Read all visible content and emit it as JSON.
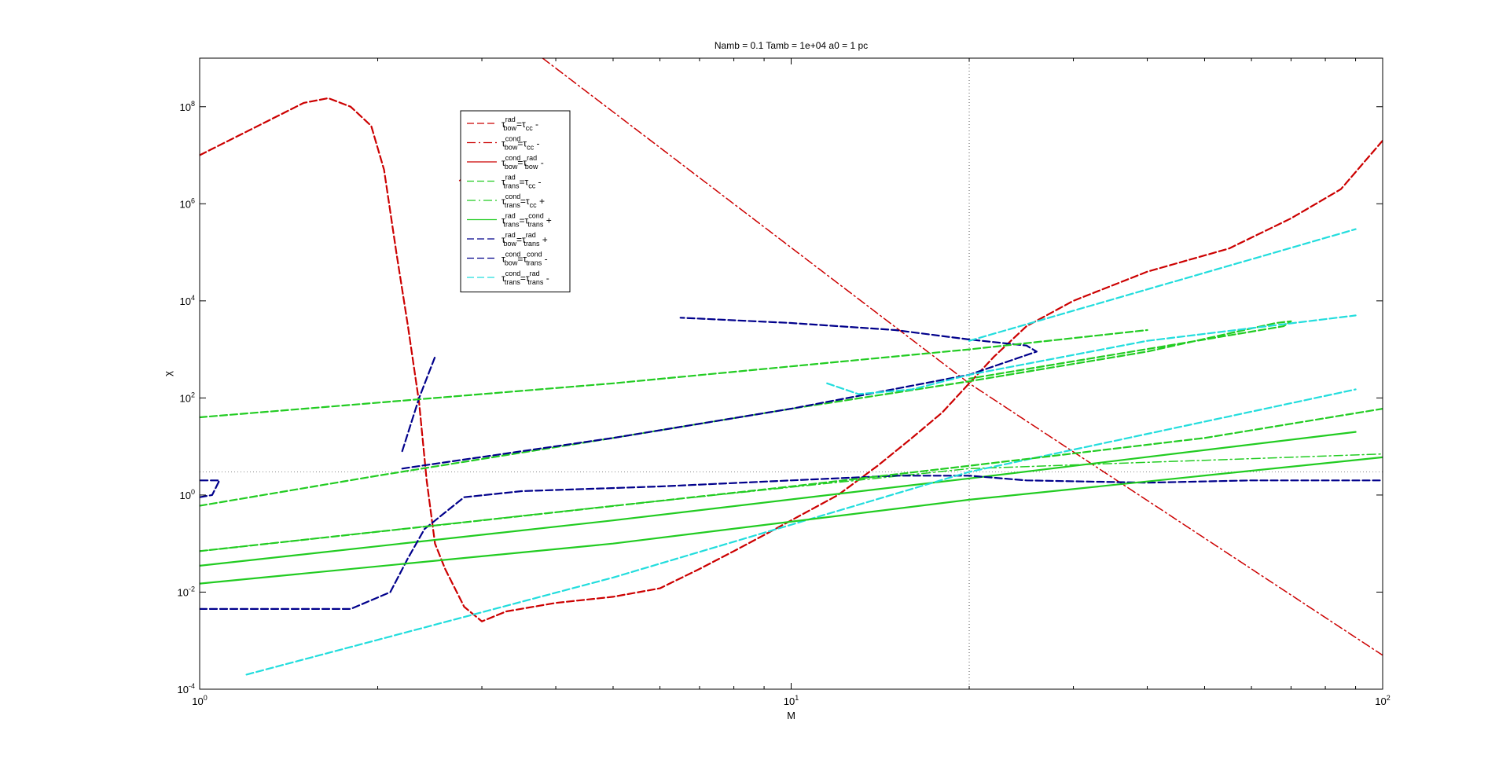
{
  "chart_data": {
    "type": "line",
    "title": "Namb = 0.1  Tamb = 1e+04  a0 = 1 pc",
    "xlabel": "M",
    "ylabel": "χ",
    "xscale": "log",
    "yscale": "log",
    "xlim": [
      1,
      100
    ],
    "ylim": [
      0.0001,
      1000000000
    ],
    "x_ticks": [
      {
        "value": 1,
        "base": "10",
        "exp": "0"
      },
      {
        "value": 10,
        "base": "10",
        "exp": "1"
      },
      {
        "value": 100,
        "base": "10",
        "exp": "2"
      }
    ],
    "y_ticks": [
      {
        "value": 0.0001,
        "base": "10",
        "exp": "-4"
      },
      {
        "value": 0.01,
        "base": "10",
        "exp": "-2"
      },
      {
        "value": 1,
        "base": "10",
        "exp": "0"
      },
      {
        "value": 100,
        "base": "10",
        "exp": "2"
      },
      {
        "value": 10000,
        "base": "10",
        "exp": "4"
      },
      {
        "value": 1000000,
        "base": "10",
        "exp": "6"
      },
      {
        "value": 100000000,
        "base": "10",
        "exp": "8"
      }
    ],
    "grid": false,
    "legend_position": "top-left",
    "reference_lines": [
      {
        "orientation": "vertical",
        "x": 20,
        "color": "#555555",
        "style": "dotted"
      },
      {
        "orientation": "horizontal",
        "y": 3,
        "color": "#888888",
        "style": "dotted"
      }
    ],
    "series": [
      {
        "legend": {
          "tau": "τ",
          "sup1": "rad",
          "sub1": "bow",
          "eq": "=τ",
          "sup2": "",
          "sub2": "cc",
          "sign": "-"
        },
        "color": "#cc0000",
        "style": "dashed",
        "width": 2.2,
        "points": [
          [
            1,
            10000000
          ],
          [
            1.5,
            120000000
          ],
          [
            1.65,
            150000000
          ],
          [
            1.8,
            100000000
          ],
          [
            1.95,
            40000000
          ],
          [
            2.05,
            5000000
          ],
          [
            2.15,
            100000
          ],
          [
            2.25,
            3000
          ],
          [
            2.35,
            80
          ],
          [
            2.42,
            2
          ],
          [
            2.5,
            0.1
          ],
          [
            2.6,
            0.03
          ],
          [
            2.8,
            0.005
          ],
          [
            3,
            0.0025
          ],
          [
            3.3,
            0.004
          ],
          [
            4,
            0.006
          ],
          [
            5,
            0.008
          ],
          [
            6,
            0.012
          ],
          [
            7,
            0.03
          ],
          [
            8,
            0.07
          ],
          [
            9,
            0.15
          ],
          [
            10,
            0.3
          ],
          [
            12,
            1
          ],
          [
            14,
            4
          ],
          [
            16,
            15
          ],
          [
            18,
            50
          ],
          [
            20,
            200
          ],
          [
            22,
            700
          ],
          [
            25,
            3000
          ],
          [
            30,
            10000
          ],
          [
            40,
            40000
          ],
          [
            55,
            120000
          ],
          [
            70,
            500000
          ],
          [
            85,
            2000000
          ],
          [
            100,
            20000000
          ]
        ]
      },
      {
        "legend": {
          "tau": "τ",
          "sup1": "cond",
          "sub1": "bow",
          "eq": "=τ",
          "sup2": "",
          "sub2": "cc",
          "sign": "-"
        },
        "color": "#cc0000",
        "style": "dashdot",
        "width": 1.5,
        "points": [
          [
            3.8,
            1000000000
          ],
          [
            20,
            200
          ],
          [
            100,
            0.0005
          ]
        ]
      },
      {
        "legend": {
          "tau": "τ",
          "sup1": "cond",
          "sub1": "bow",
          "eq": "=τ",
          "sup2": "rad",
          "sub2": "bow",
          "sign": "-"
        },
        "color": "#cc0000",
        "style": "solid",
        "width": 1.5,
        "points": [
          [
            2.75,
            3000000
          ],
          [
            2.8,
            3600000
          ]
        ]
      },
      {
        "legend": {
          "tau": "τ",
          "sup1": "rad",
          "sub1": "trans",
          "eq": "=τ",
          "sup2": "",
          "sub2": "cc",
          "sign": "-"
        },
        "color": "#22cc22",
        "style": "dashed",
        "width": 2.2,
        "points": [
          [
            1,
            0.6
          ],
          [
            2,
            2.5
          ],
          [
            5,
            15
          ],
          [
            10,
            60
          ],
          [
            20,
            220
          ],
          [
            40,
            900
          ],
          [
            66,
            3500
          ],
          [
            70,
            3800
          ],
          [
            68,
            3000
          ],
          [
            50,
            1600
          ],
          [
            20,
            250
          ]
        ]
      },
      {
        "legend": {
          "tau": "τ",
          "sup1": "cond",
          "sub1": "trans",
          "eq": "=τ",
          "sup2": "",
          "sub2": "cc",
          "sign": "+"
        },
        "color": "#22cc22",
        "style": "dashdot",
        "width": 1.5,
        "points": [
          [
            1,
            0.07
          ],
          [
            5,
            0.6
          ],
          [
            20,
            3.5
          ],
          [
            100,
            7
          ]
        ]
      },
      {
        "legend": {
          "tau": "τ",
          "sup1": "rad",
          "sub1": "trans",
          "eq": "=τ",
          "sup2": "cond",
          "sub2": "trans",
          "sign": "+"
        },
        "color": "#22cc22",
        "style": "solid",
        "width": 2.2,
        "points": [
          [
            1,
            0.035
          ],
          [
            5,
            0.3
          ],
          [
            20,
            2.2
          ],
          [
            90,
            20
          ]
        ]
      },
      {
        "legend": {
          "tau": "τ",
          "sup1": "rad",
          "sub1": "bow",
          "eq": "=τ",
          "sup2": "rad",
          "sub2": "trans",
          "sign": "+"
        },
        "color": "#00008b",
        "style": "dashed",
        "width": 2.2,
        "points": [
          [
            1,
            0.0045
          ],
          [
            1.8,
            0.0045
          ],
          [
            2.1,
            0.01
          ],
          [
            2.25,
            0.05
          ],
          [
            2.4,
            0.2
          ],
          [
            2.8,
            0.9
          ],
          [
            3.5,
            1.2
          ],
          [
            6,
            1.5
          ],
          [
            10,
            2
          ],
          [
            15,
            2.5
          ],
          [
            20,
            2.5
          ],
          [
            25,
            2
          ],
          [
            40,
            1.8
          ],
          [
            60,
            2
          ],
          [
            100,
            2
          ]
        ]
      },
      {
        "legend": {
          "tau": "τ",
          "sup1": "cond",
          "sub1": "bow",
          "eq": "=τ",
          "sup2": "cond",
          "sub2": "trans",
          "sign": "-"
        },
        "color": "#00008b",
        "style": "dashed",
        "width": 2.2,
        "points": [
          [
            1,
            0.9
          ],
          [
            1.05,
            1
          ],
          [
            1.08,
            2
          ],
          [
            1.0,
            2
          ]
        ]
      },
      {
        "legend": {
          "tau": "τ",
          "sup1": "cond",
          "sub1": "trans",
          "eq": "=τ",
          "sup2": "rad",
          "sub2": "trans",
          "sign": "-"
        },
        "color": "#22dddd",
        "style": "dashed",
        "width": 2.2,
        "points": [
          [
            1.2,
            0.0002
          ],
          [
            5,
            0.02
          ],
          [
            20,
            3
          ],
          [
            90,
            150
          ]
        ]
      },
      {
        "color": "#00008b",
        "style": "dashed",
        "width": 2.2,
        "points": [
          [
            2.2,
            8
          ],
          [
            2.35,
            100
          ],
          [
            2.5,
            700
          ]
        ]
      },
      {
        "color": "#00008b",
        "style": "dashed",
        "width": 2.2,
        "points": [
          [
            2.2,
            3.5
          ],
          [
            2.3,
            3.8
          ],
          [
            5,
            15
          ],
          [
            10,
            60
          ],
          [
            20,
            300
          ],
          [
            26,
            900
          ],
          [
            25,
            1200
          ],
          [
            20,
            1600
          ],
          [
            15,
            2500
          ],
          [
            10,
            3500
          ],
          [
            6.5,
            4500
          ]
        ]
      },
      {
        "color": "#22dddd",
        "style": "dashed",
        "width": 2.2,
        "points": [
          [
            11.5,
            200
          ],
          [
            13,
            120
          ],
          [
            16,
            150
          ],
          [
            20,
            300
          ],
          [
            40,
            1500
          ],
          [
            90,
            5000
          ]
        ]
      },
      {
        "color": "#22dddd",
        "style": "dashed",
        "width": 2.2,
        "points": [
          [
            20,
            1500
          ],
          [
            90,
            300000
          ]
        ]
      },
      {
        "color": "#22cc22",
        "style": "dashed",
        "width": 2.2,
        "points": [
          [
            1,
            40
          ],
          [
            5,
            200
          ],
          [
            20,
            1000
          ],
          [
            40,
            2500
          ]
        ]
      },
      {
        "color": "#22cc22",
        "style": "dashed",
        "width": 2.2,
        "points": [
          [
            1,
            0.07
          ],
          [
            3,
            0.3
          ],
          [
            10,
            1.5
          ],
          [
            20,
            4
          ],
          [
            50,
            15
          ],
          [
            100,
            60
          ]
        ]
      },
      {
        "color": "#22cc22",
        "style": "solid",
        "width": 2.2,
        "points": [
          [
            1,
            0.015
          ],
          [
            5,
            0.1
          ],
          [
            20,
            0.8
          ],
          [
            100,
            6
          ]
        ]
      }
    ]
  }
}
